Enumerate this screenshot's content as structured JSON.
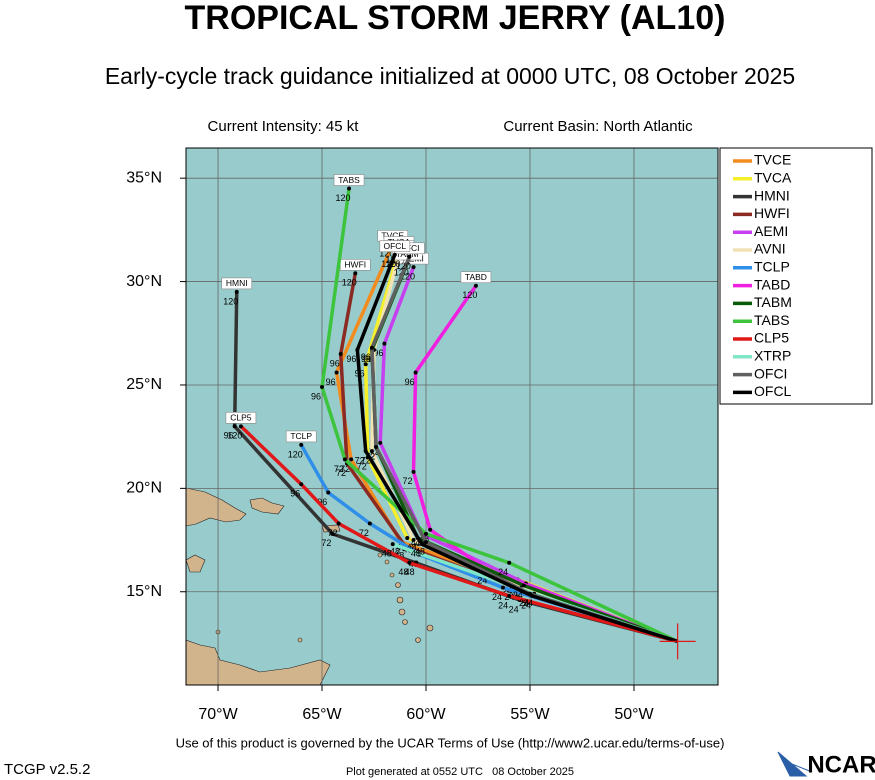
{
  "chart_data": {
    "type": "track",
    "title": "TROPICAL STORM JERRY (AL10)",
    "subtitle": "Early-cycle track guidance initialized at 0000 UTC, 08 October 2025",
    "intensity": "Current Intensity: 45 kt",
    "basin": "Current Basin: North Atlantic",
    "terms": "Use of this product is governed by the UCAR Terms of Use (http://www2.ucar.edu/terms-of-use)",
    "version": "TCGP v2.5.2",
    "generated": "Plot generated at 0552 UTC   08 October 2025",
    "logo": "NCAR",
    "xlim": [
      -71.54,
      -45.96
    ],
    "ylim": [
      10.49,
      36.46
    ],
    "xticks": [
      {
        "value": -70,
        "label": "70°W"
      },
      {
        "value": -65,
        "label": "65°W"
      },
      {
        "value": -60,
        "label": "60°W"
      },
      {
        "value": -55,
        "label": "55°W"
      },
      {
        "value": -50,
        "label": "50°W"
      }
    ],
    "yticks": [
      {
        "value": 15,
        "label": "15°N"
      },
      {
        "value": 20,
        "label": "20°N"
      },
      {
        "value": 25,
        "label": "25°N"
      },
      {
        "value": 30,
        "label": "30°N"
      },
      {
        "value": 35,
        "label": "35°N"
      }
    ],
    "grid": true,
    "label_hours": [
      24,
      48,
      72,
      96,
      120
    ],
    "series": [
      {
        "name": "TVCE",
        "color": "#f28c1e",
        "lon": [
          -47.9,
          -55.8,
          -61.2,
          -63.6,
          -64.3,
          -61.6
        ],
        "lat": [
          12.6,
          15.5,
          17.4,
          21.4,
          25.6,
          31.8
        ]
      },
      {
        "name": "TVCA",
        "color": "#f5ef2a",
        "lon": [
          -47.9,
          -55.6,
          -60.9,
          -62.8,
          -62.9,
          -61.3
        ],
        "lat": [
          12.6,
          15.6,
          17.6,
          21.5,
          26.0,
          31.5
        ]
      },
      {
        "name": "HMNI",
        "color": "#333333",
        "lon": [
          -47.9,
          -55.5,
          -60.5,
          -64.5,
          -69.2,
          -69.1
        ],
        "lat": [
          12.6,
          14.6,
          16.4,
          17.8,
          23.0,
          29.5
        ]
      },
      {
        "name": "HWFI",
        "color": "#8b2a22",
        "lon": [
          -47.9,
          -55.7,
          -61.0,
          -63.8,
          -64.1,
          -63.4
        ],
        "lat": [
          12.6,
          15.2,
          17.2,
          21.2,
          26.5,
          30.4
        ]
      },
      {
        "name": "AEMI",
        "color": "#c640f0",
        "lon": [
          -47.9,
          -55.2,
          -60.2,
          -62.2,
          -62.0,
          -60.6
        ],
        "lat": [
          12.6,
          15.4,
          17.8,
          22.2,
          27.0,
          30.7
        ]
      },
      {
        "name": "AVNI",
        "color": "#f2e3b5",
        "lon": [
          -47.9,
          -55.4,
          -60.6,
          -62.6,
          -62.5,
          -61.3
        ],
        "lat": [
          12.6,
          15.3,
          17.5,
          21.8,
          26.7,
          31.3
        ]
      },
      {
        "name": "TCLP",
        "color": "#2f8fe8",
        "lon": [
          -47.9,
          -56.3,
          -60.3,
          -62.7,
          -64.7,
          -66.0
        ],
        "lat": [
          12.6,
          15.2,
          16.8,
          18.3,
          19.8,
          22.1
        ]
      },
      {
        "name": "TABD",
        "color": "#f020e0",
        "lon": [
          -47.9,
          -57.0,
          -59.8,
          -60.6,
          -60.5,
          -57.6
        ],
        "lat": [
          12.6,
          16.0,
          18.0,
          20.8,
          25.6,
          29.8
        ]
      },
      {
        "name": "TABM",
        "color": "#0a5a0a",
        "lon": [
          -47.9,
          -55.3,
          -60.4,
          -62.4,
          -62.6,
          -60.9
        ],
        "lat": [
          12.6,
          15.3,
          17.6,
          22.0,
          26.7,
          30.9
        ]
      },
      {
        "name": "TABS",
        "color": "#3cc43c",
        "lon": [
          -47.9,
          -56.0,
          -60.0,
          -63.9,
          -65.0,
          -63.7
        ],
        "lat": [
          12.6,
          16.4,
          17.8,
          21.4,
          24.9,
          34.5
        ]
      },
      {
        "name": "CLP5",
        "color": "#e01818",
        "lon": [
          -47.9,
          -56.0,
          -60.8,
          -64.2,
          -66.0,
          -68.9
        ],
        "lat": [
          12.6,
          14.8,
          16.4,
          18.3,
          20.2,
          23.0
        ]
      },
      {
        "name": "XTRP",
        "color": "#7fe6c8",
        "lon": [
          -47.9,
          -54.8,
          -61.6
        ],
        "lat": [
          12.6,
          14.9,
          17.3
        ]
      },
      {
        "name": "OFCI",
        "color": "#606060",
        "lon": [
          -47.9,
          -55.0,
          -60.0,
          -62.4,
          -62.6,
          -60.8
        ],
        "lat": [
          12.6,
          14.9,
          17.4,
          22.0,
          26.8,
          31.2
        ]
      },
      {
        "name": "OFCL",
        "color": "#000000",
        "lon": [
          -47.9,
          -54.9,
          -60.2,
          -62.9,
          -63.3,
          -61.5
        ],
        "lat": [
          12.6,
          14.8,
          17.3,
          21.8,
          26.7,
          31.3
        ]
      }
    ]
  }
}
